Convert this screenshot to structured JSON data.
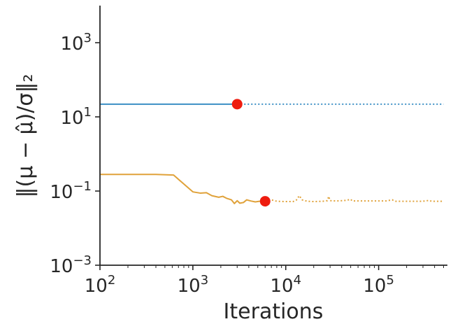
{
  "chart_data": {
    "type": "line",
    "xlabel": "Iterations",
    "ylabel": "‖(μ − μ̂)/σ‖₂",
    "xscale": "log",
    "yscale": "log",
    "xlim": [
      100,
      550000
    ],
    "ylim": [
      0.001,
      10000
    ],
    "xticks": [
      {
        "base": "10",
        "exp": "2",
        "value": 100
      },
      {
        "base": "10",
        "exp": "3",
        "value": 1000
      },
      {
        "base": "10",
        "exp": "4",
        "value": 10000
      },
      {
        "base": "10",
        "exp": "5",
        "value": 100000
      }
    ],
    "yticks": [
      {
        "base": "10",
        "exp": "−3",
        "value": 0.001
      },
      {
        "base": "10",
        "exp": "−1",
        "value": 0.1
      },
      {
        "base": "10",
        "exp": "1",
        "value": 10
      },
      {
        "base": "10",
        "exp": "3",
        "value": 1000
      }
    ],
    "grid": false,
    "series": [
      {
        "color": "#3b8fc4",
        "solid": [
          [
            100,
            22
          ],
          [
            3000,
            22
          ]
        ],
        "dotted": [
          [
            3000,
            22
          ],
          [
            500000,
            22
          ]
        ],
        "marker": [
          3000,
          22
        ]
      },
      {
        "color": "#e0a23a",
        "solid": [
          [
            100,
            0.28
          ],
          [
            400,
            0.28
          ],
          [
            620,
            0.27
          ],
          [
            1000,
            0.095
          ],
          [
            1200,
            0.088
          ],
          [
            1400,
            0.09
          ],
          [
            1600,
            0.075
          ],
          [
            1900,
            0.068
          ],
          [
            2100,
            0.072
          ],
          [
            2300,
            0.064
          ],
          [
            2600,
            0.058
          ],
          [
            2800,
            0.046
          ],
          [
            3000,
            0.055
          ],
          [
            3200,
            0.047
          ],
          [
            3500,
            0.049
          ],
          [
            3800,
            0.058
          ],
          [
            4200,
            0.054
          ],
          [
            4700,
            0.051
          ],
          [
            5200,
            0.053
          ],
          [
            6000,
            0.053
          ]
        ],
        "dotted": [
          [
            6000,
            0.053
          ],
          [
            7000,
            0.058
          ],
          [
            8000,
            0.053
          ],
          [
            10000,
            0.052
          ],
          [
            12000,
            0.052
          ],
          [
            13000,
            0.057
          ],
          [
            14000,
            0.075
          ],
          [
            15000,
            0.058
          ],
          [
            17000,
            0.053
          ],
          [
            20000,
            0.052
          ],
          [
            25000,
            0.053
          ],
          [
            28000,
            0.055
          ],
          [
            29000,
            0.072
          ],
          [
            30000,
            0.055
          ],
          [
            35000,
            0.054
          ],
          [
            45000,
            0.056
          ],
          [
            50000,
            0.06
          ],
          [
            52000,
            0.054
          ],
          [
            70000,
            0.054
          ],
          [
            100000,
            0.054
          ],
          [
            120000,
            0.054
          ],
          [
            140000,
            0.058
          ],
          [
            150000,
            0.053
          ],
          [
            200000,
            0.053
          ],
          [
            300000,
            0.053
          ],
          [
            350000,
            0.056
          ],
          [
            370000,
            0.053
          ],
          [
            500000,
            0.053
          ]
        ],
        "marker": [
          6000,
          0.053
        ]
      }
    ],
    "marker_color": "#ee1c0f"
  }
}
